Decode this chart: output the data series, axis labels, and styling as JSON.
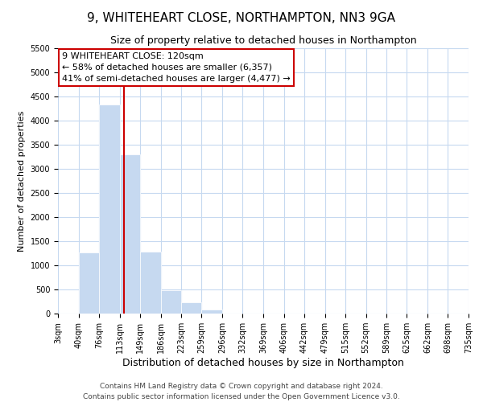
{
  "title": "9, WHITEHEART CLOSE, NORTHAMPTON, NN3 9GA",
  "subtitle": "Size of property relative to detached houses in Northampton",
  "xlabel": "Distribution of detached houses by size in Northampton",
  "ylabel": "Number of detached properties",
  "bar_color": "#c6d9f0",
  "grid_color": "#c6d9f0",
  "marker_line_color": "#cc0000",
  "marker_value": 120,
  "annotation_title": "9 WHITEHEART CLOSE: 120sqm",
  "annotation_line1": "← 58% of detached houses are smaller (6,357)",
  "annotation_line2": "41% of semi-detached houses are larger (4,477) →",
  "annotation_box_color": "#ffffff",
  "annotation_box_edge": "#cc0000",
  "bins": [
    3,
    40,
    76,
    113,
    149,
    186,
    223,
    259,
    296,
    332,
    369,
    406,
    442,
    479,
    515,
    552,
    589,
    625,
    662,
    698,
    735
  ],
  "counts": [
    0,
    1270,
    4330,
    3300,
    1290,
    480,
    240,
    90,
    0,
    0,
    0,
    0,
    0,
    0,
    0,
    0,
    0,
    0,
    0,
    0
  ],
  "ylim": [
    0,
    5500
  ],
  "yticks": [
    0,
    500,
    1000,
    1500,
    2000,
    2500,
    3000,
    3500,
    4000,
    4500,
    5000,
    5500
  ],
  "footer_line1": "Contains HM Land Registry data © Crown copyright and database right 2024.",
  "footer_line2": "Contains public sector information licensed under the Open Government Licence v3.0.",
  "title_fontsize": 11,
  "subtitle_fontsize": 9,
  "xlabel_fontsize": 9,
  "ylabel_fontsize": 8,
  "tick_fontsize": 7,
  "footer_fontsize": 6.5,
  "annotation_fontsize": 8
}
